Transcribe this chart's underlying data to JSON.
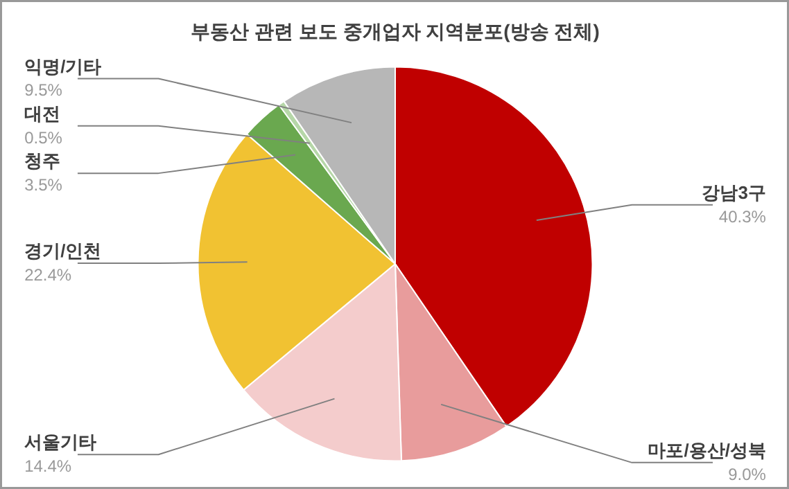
{
  "chart_data": {
    "type": "pie",
    "title": "부동산 관련 보도 중개업자 지역분포(방송 전체)",
    "categories": [
      "강남3구",
      "마포/용산/성북",
      "서울기타",
      "경기/인천",
      "청주",
      "대전",
      "익명/기타"
    ],
    "values": [
      40.3,
      9.0,
      14.4,
      22.4,
      3.5,
      0.5,
      9.5
    ],
    "colors": [
      "#c00000",
      "#e89c9c",
      "#f4cccc",
      "#f1c232",
      "#6aa84f",
      "#b6d7a8",
      "#b7b7b7"
    ],
    "value_labels": [
      "40.3%",
      "9.0%",
      "14.4%",
      "22.4%",
      "3.5%",
      "0.5%",
      "9.5%"
    ]
  }
}
